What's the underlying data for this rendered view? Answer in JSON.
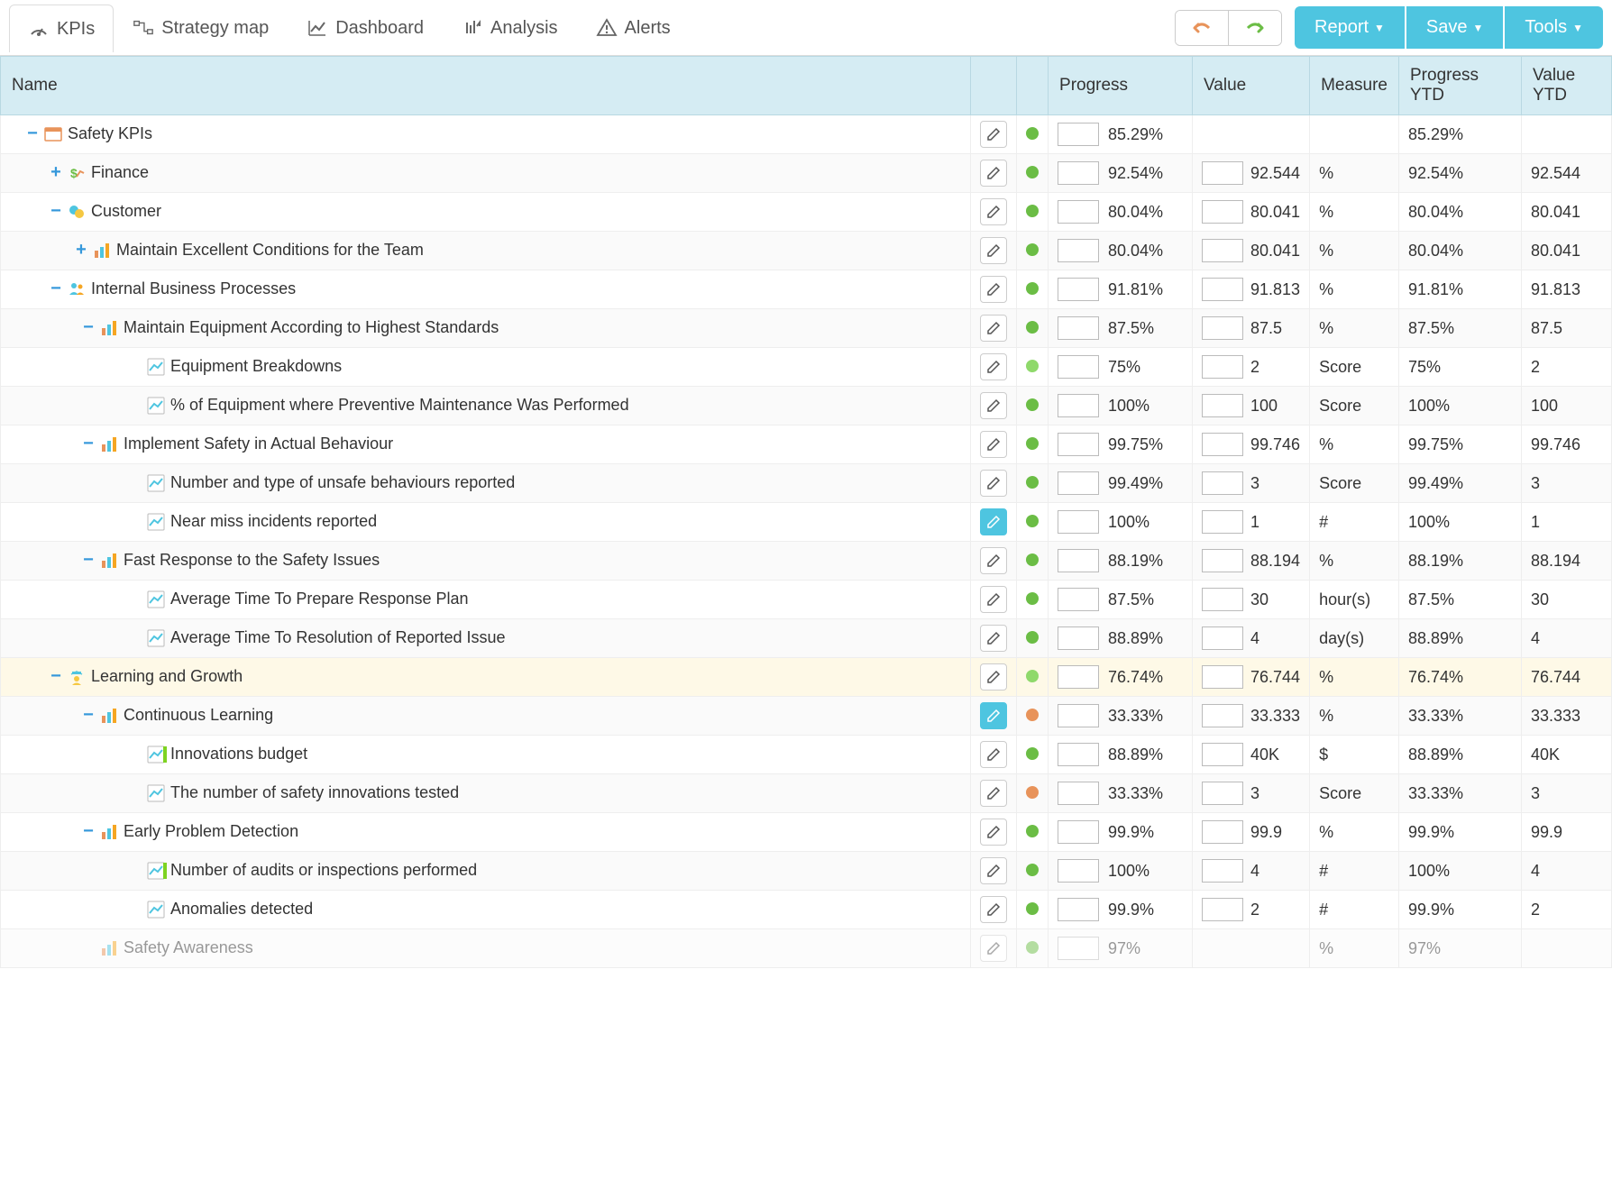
{
  "toolbar": {
    "tabs": [
      {
        "label": "KPIs",
        "icon": "gauge",
        "active": true
      },
      {
        "label": "Strategy map",
        "icon": "strategy",
        "active": false
      },
      {
        "label": "Dashboard",
        "icon": "chart-line",
        "active": false
      },
      {
        "label": "Analysis",
        "icon": "analysis",
        "active": false
      },
      {
        "label": "Alerts",
        "icon": "alert",
        "active": false
      }
    ],
    "buttons": [
      {
        "label": "Report",
        "color": "#4ec5e0"
      },
      {
        "label": "Save",
        "color": "#4ec5e0"
      },
      {
        "label": "Tools",
        "color": "#4ec5e0"
      }
    ],
    "undo_color": "#e8935a",
    "redo_color": "#6bbd45"
  },
  "columns": {
    "name": "Name",
    "progress": "Progress",
    "value": "Value",
    "measure": "Measure",
    "progress_ytd": "Progress YTD",
    "value_ytd": "Value YTD"
  },
  "status_colors": {
    "green": "#6bbd45",
    "green-light": "#8fd96b",
    "orange": "#e8935a"
  },
  "rows": [
    {
      "indent": 0,
      "toggle": "-",
      "icon": "scorecard",
      "name": "Safety KPIs",
      "status": "green",
      "progress": "85.29%",
      "value": "",
      "measure": "",
      "pytd": "85.29%",
      "vytd": "",
      "edit_active": false,
      "highlighted": false,
      "show_value_input": false
    },
    {
      "indent": 1,
      "toggle": "+",
      "icon": "finance",
      "name": "Finance",
      "status": "green",
      "progress": "92.54%",
      "value": "92.544",
      "measure": "%",
      "pytd": "92.54%",
      "vytd": "92.544",
      "edit_active": false,
      "highlighted": false,
      "show_value_input": true
    },
    {
      "indent": 1,
      "toggle": "-",
      "icon": "customer",
      "name": "Customer",
      "status": "green",
      "progress": "80.04%",
      "value": "80.041",
      "measure": "%",
      "pytd": "80.04%",
      "vytd": "80.041",
      "edit_active": false,
      "highlighted": false,
      "show_value_input": true
    },
    {
      "indent": 2,
      "toggle": "+",
      "icon": "bars",
      "name": "Maintain Excellent Conditions for the Team",
      "status": "green",
      "progress": "80.04%",
      "value": "80.041",
      "measure": "%",
      "pytd": "80.04%",
      "vytd": "80.041",
      "edit_active": false,
      "highlighted": false,
      "show_value_input": true
    },
    {
      "indent": 1,
      "toggle": "-",
      "icon": "people",
      "name": "Internal Business Processes",
      "status": "green",
      "progress": "91.81%",
      "value": "91.813",
      "measure": "%",
      "pytd": "91.81%",
      "vytd": "91.813",
      "edit_active": false,
      "highlighted": false,
      "show_value_input": true
    },
    {
      "indent": 3,
      "toggle": "-",
      "icon": "bars",
      "name": "Maintain Equipment According to Highest Standards",
      "status": "green",
      "progress": "87.5%",
      "value": "87.5",
      "measure": "%",
      "pytd": "87.5%",
      "vytd": "87.5",
      "edit_active": false,
      "highlighted": false,
      "show_value_input": true
    },
    {
      "indent": 4,
      "toggle": "",
      "icon": "kpi",
      "name": "Equipment Breakdowns",
      "status": "green-light",
      "progress": "75%",
      "value": "2",
      "measure": "Score",
      "pytd": "75%",
      "vytd": "2",
      "edit_active": false,
      "highlighted": false,
      "show_value_input": true
    },
    {
      "indent": 4,
      "toggle": "",
      "icon": "kpi",
      "name": "% of Equipment where Preventive Maintenance Was Performed",
      "status": "green",
      "progress": "100%",
      "value": "100",
      "measure": "Score",
      "pytd": "100%",
      "vytd": "100",
      "edit_active": false,
      "highlighted": false,
      "show_value_input": true
    },
    {
      "indent": 3,
      "toggle": "-",
      "icon": "bars",
      "name": "Implement Safety in Actual Behaviour",
      "status": "green",
      "progress": "99.75%",
      "value": "99.746",
      "measure": "%",
      "pytd": "99.75%",
      "vytd": "99.746",
      "edit_active": false,
      "highlighted": false,
      "show_value_input": true
    },
    {
      "indent": 4,
      "toggle": "",
      "icon": "kpi",
      "name": "Number and type of unsafe behaviours reported",
      "status": "green",
      "progress": "99.49%",
      "value": "3",
      "measure": "Score",
      "pytd": "99.49%",
      "vytd": "3",
      "edit_active": false,
      "highlighted": false,
      "show_value_input": true
    },
    {
      "indent": 4,
      "toggle": "",
      "icon": "kpi",
      "name": "Near miss incidents reported",
      "status": "green",
      "progress": "100%",
      "value": "1",
      "measure": "#",
      "pytd": "100%",
      "vytd": "1",
      "edit_active": true,
      "highlighted": false,
      "show_value_input": true
    },
    {
      "indent": 3,
      "toggle": "-",
      "icon": "bars",
      "name": "Fast Response to the Safety Issues",
      "status": "green",
      "progress": "88.19%",
      "value": "88.194",
      "measure": "%",
      "pytd": "88.19%",
      "vytd": "88.194",
      "edit_active": false,
      "highlighted": false,
      "show_value_input": true
    },
    {
      "indent": 4,
      "toggle": "",
      "icon": "kpi",
      "name": "Average Time To Prepare Response Plan",
      "status": "green",
      "progress": "87.5%",
      "value": "30",
      "measure": "hour(s)",
      "pytd": "87.5%",
      "vytd": "30",
      "edit_active": false,
      "highlighted": false,
      "show_value_input": true
    },
    {
      "indent": 4,
      "toggle": "",
      "icon": "kpi",
      "name": "Average Time To Resolution of Reported Issue",
      "status": "green",
      "progress": "88.89%",
      "value": "4",
      "measure": "day(s)",
      "pytd": "88.89%",
      "vytd": "4",
      "edit_active": false,
      "highlighted": false,
      "show_value_input": true
    },
    {
      "indent": 1,
      "toggle": "-",
      "icon": "learning",
      "name": "Learning and Growth",
      "status": "green-light",
      "progress": "76.74%",
      "value": "76.744",
      "measure": "%",
      "pytd": "76.74%",
      "vytd": "76.744",
      "edit_active": false,
      "highlighted": true,
      "show_value_input": true
    },
    {
      "indent": 3,
      "toggle": "-",
      "icon": "bars",
      "name": "Continuous Learning",
      "status": "orange",
      "progress": "33.33%",
      "value": "33.333",
      "measure": "%",
      "pytd": "33.33%",
      "vytd": "33.333",
      "edit_active": true,
      "highlighted": false,
      "show_value_input": true
    },
    {
      "indent": 4,
      "toggle": "",
      "icon": "kpi-bar",
      "name": "Innovations budget",
      "status": "green",
      "progress": "88.89%",
      "value": "40K",
      "measure": "$",
      "pytd": "88.89%",
      "vytd": "40K",
      "edit_active": false,
      "highlighted": false,
      "show_value_input": true
    },
    {
      "indent": 4,
      "toggle": "",
      "icon": "kpi",
      "name": "The number of safety innovations tested",
      "status": "orange",
      "progress": "33.33%",
      "value": "3",
      "measure": "Score",
      "pytd": "33.33%",
      "vytd": "3",
      "edit_active": false,
      "highlighted": false,
      "show_value_input": true
    },
    {
      "indent": 3,
      "toggle": "-",
      "icon": "bars",
      "name": "Early Problem Detection",
      "status": "green",
      "progress": "99.9%",
      "value": "99.9",
      "measure": "%",
      "pytd": "99.9%",
      "vytd": "99.9",
      "edit_active": false,
      "highlighted": false,
      "show_value_input": true
    },
    {
      "indent": 4,
      "toggle": "",
      "icon": "kpi-bar",
      "name": "Number of audits or inspections performed",
      "status": "green",
      "progress": "100%",
      "value": "4",
      "measure": "#",
      "pytd": "100%",
      "vytd": "4",
      "edit_active": false,
      "highlighted": false,
      "show_value_input": true
    },
    {
      "indent": 4,
      "toggle": "",
      "icon": "kpi",
      "name": "Anomalies detected",
      "status": "green",
      "progress": "99.9%",
      "value": "2",
      "measure": "#",
      "pytd": "99.9%",
      "vytd": "2",
      "edit_active": false,
      "highlighted": false,
      "show_value_input": true
    },
    {
      "indent": 3,
      "toggle": "",
      "icon": "bars",
      "name": "Safety Awareness",
      "status": "green",
      "progress": "97%",
      "value": "",
      "measure": "%",
      "pytd": "97%",
      "vytd": "",
      "edit_active": false,
      "highlighted": false,
      "show_value_input": false,
      "cutoff": true
    }
  ]
}
